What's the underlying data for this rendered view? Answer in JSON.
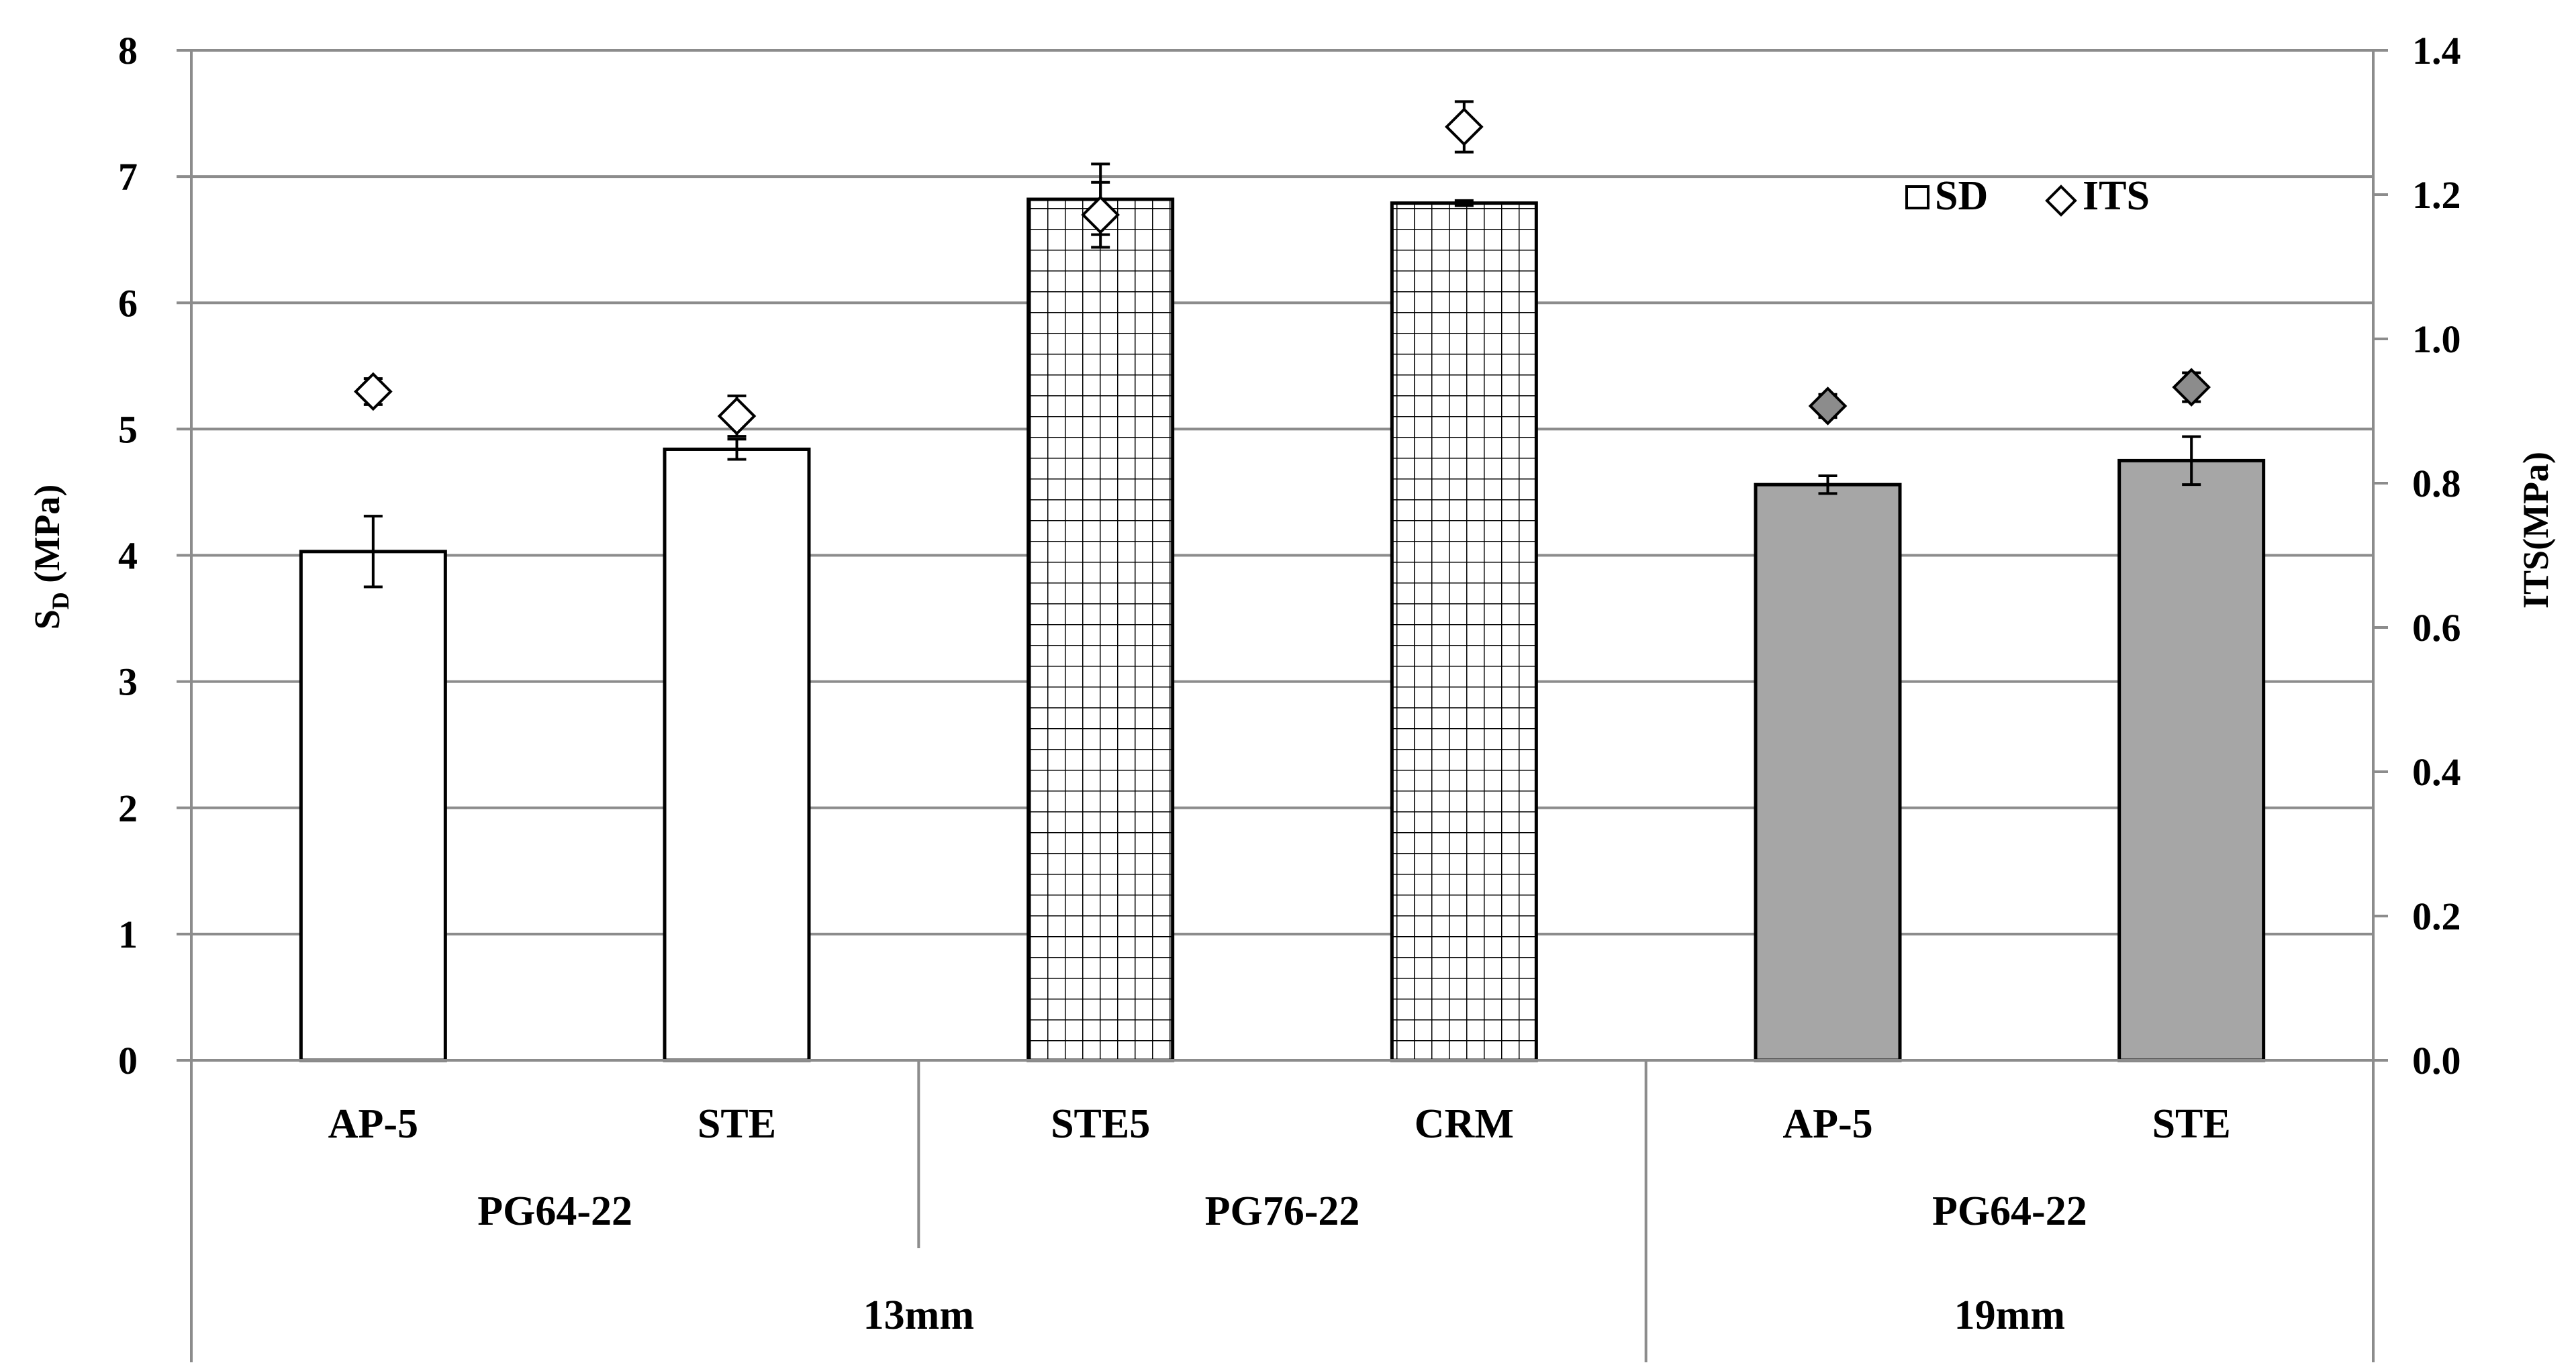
{
  "chart_data": {
    "type": "bar",
    "title": "",
    "categories": [
      "AP-5",
      "STE",
      "STE5",
      "CRM",
      "AP-5",
      "STE"
    ],
    "binder_groups": [
      {
        "label": "PG64-22",
        "span": [
          0,
          1
        ]
      },
      {
        "label": "PG76-22",
        "span": [
          2,
          3
        ]
      },
      {
        "label": "PG64-22",
        "span": [
          4,
          5
        ]
      }
    ],
    "size_groups": [
      {
        "label": "13mm",
        "span": [
          0,
          3
        ]
      },
      {
        "label": "19mm",
        "span": [
          4,
          5
        ]
      }
    ],
    "bar_styles": [
      "white",
      "white",
      "grid",
      "grid",
      "gray",
      "gray"
    ],
    "series": [
      {
        "name": "SD",
        "axis": "left",
        "values": [
          4.03,
          4.84,
          6.82,
          6.79,
          4.56,
          4.75
        ],
        "errors": [
          0.28,
          0.08,
          0.28,
          0.02,
          0.07,
          0.19
        ]
      },
      {
        "name": "ITS",
        "axis": "right",
        "values": [
          0.927,
          0.893,
          1.172,
          1.294,
          0.907,
          0.933
        ],
        "errors": [
          0.018,
          0.028,
          0.045,
          0.035,
          0.016,
          0.02
        ]
      }
    ],
    "y_left": {
      "label_main": "S",
      "label_sub": "D",
      "label_unit": " (MPa)",
      "ylim": [
        0,
        8
      ],
      "ticks": [
        "0",
        "1",
        "2",
        "3",
        "4",
        "5",
        "6",
        "7",
        "8"
      ]
    },
    "y_right": {
      "label": "ITS(MPa)",
      "ylim": [
        0,
        1.4
      ],
      "ticks": [
        "0.0",
        "0.2",
        "0.4",
        "0.6",
        "0.8",
        "1.0",
        "1.2",
        "1.4"
      ]
    },
    "legend": {
      "position": "top-right",
      "items": [
        "SD",
        "ITS"
      ]
    },
    "grid": true,
    "colors": {
      "white_bar": "#ffffff",
      "gray_bar": "#a6a6a6",
      "grid_line": "#8c8c8c",
      "marker_gray": "#8c8c8c",
      "stroke": "#000000"
    }
  }
}
